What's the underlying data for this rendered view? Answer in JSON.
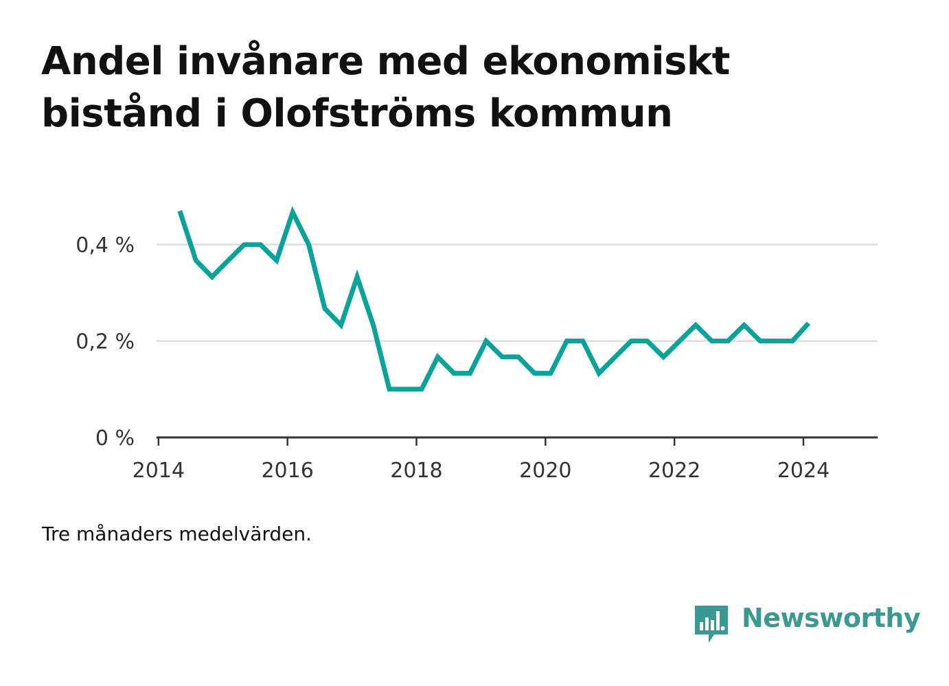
{
  "title_lines": [
    "Andel invånare med ekonomiskt",
    "bistånd i Olofströms kommun"
  ],
  "note": "Tre månaders medelvärden.",
  "brand": {
    "name": "Newsworthy",
    "icon": "bar-chart-speech-bubble-icon",
    "color": "#3a9a92"
  },
  "colors": {
    "line": "#0aa39a",
    "grid": "#dddddd",
    "axis": "#333333"
  },
  "chart_data": {
    "type": "line",
    "title": "Andel invånare med ekonomiskt bistånd i Olofströms kommun",
    "xlabel": "",
    "ylabel": "",
    "x_ticks": [
      2014,
      2016,
      2018,
      2020,
      2022,
      2024
    ],
    "x_tick_labels": [
      "2014",
      "2016",
      "2018",
      "2020",
      "2022",
      "2024"
    ],
    "xlim": [
      2013.97,
      2025.15
    ],
    "y_ticks": [
      0,
      0.2,
      0.4
    ],
    "y_tick_labels": [
      "0 %",
      "0,2 %",
      "0,4 %"
    ],
    "ylim": [
      0,
      0.48
    ],
    "grid": true,
    "legend": "none",
    "series": [
      {
        "x": [
          2014.33,
          2014.58,
          2014.83,
          2015.08,
          2015.33,
          2015.58,
          2015.83,
          2016.08,
          2016.33,
          2016.58,
          2016.83,
          2017.08,
          2017.33,
          2017.58,
          2017.83,
          2018.08,
          2018.33,
          2018.58,
          2018.83,
          2019.08,
          2019.33,
          2019.58,
          2019.83,
          2020.08,
          2020.33,
          2020.58,
          2020.83,
          2021.08,
          2021.33,
          2021.58,
          2021.83,
          2022.08,
          2022.33,
          2022.58,
          2022.83,
          2023.08,
          2023.33,
          2023.58,
          2023.83,
          2024.08
        ],
        "y": [
          0.47,
          0.367,
          0.333,
          0.367,
          0.4,
          0.4,
          0.367,
          0.467,
          0.4,
          0.267,
          0.233,
          0.333,
          0.233,
          0.1,
          0.1,
          0.1,
          0.167,
          0.133,
          0.133,
          0.2,
          0.167,
          0.167,
          0.133,
          0.133,
          0.2,
          0.2,
          0.133,
          0.167,
          0.2,
          0.2,
          0.167,
          0.2,
          0.233,
          0.2,
          0.2,
          0.233,
          0.2,
          0.2,
          0.2,
          0.237
        ]
      }
    ]
  }
}
